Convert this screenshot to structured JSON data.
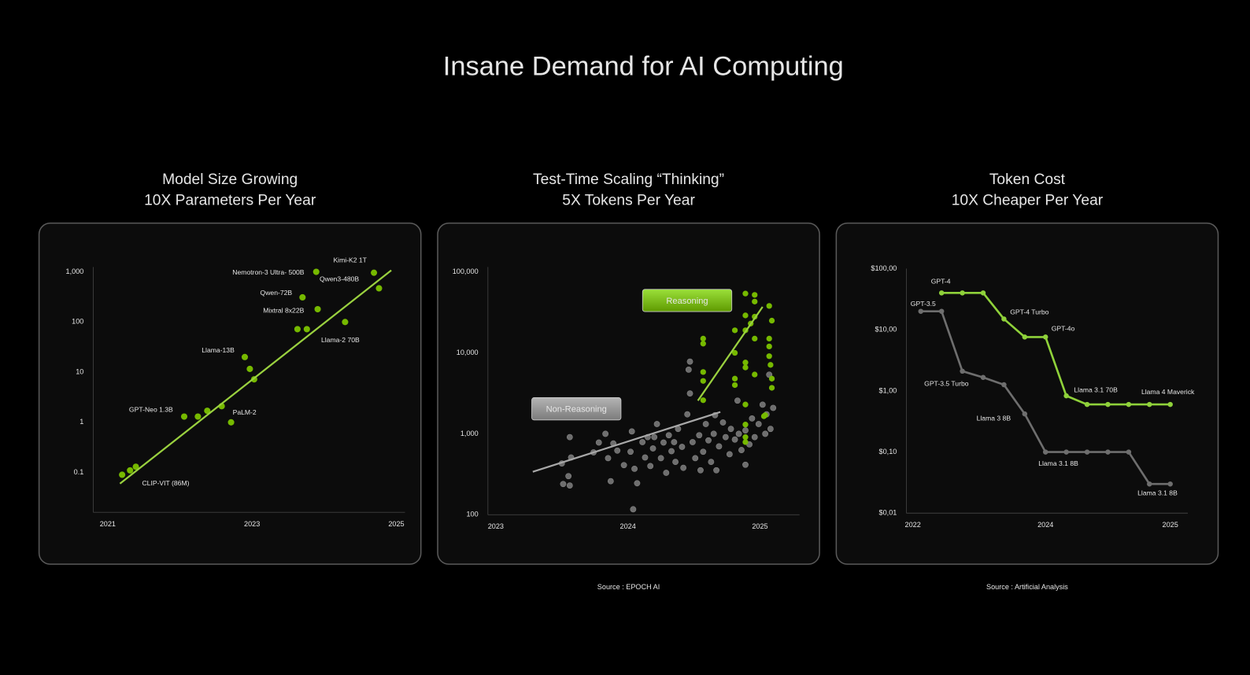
{
  "title": "Insane Demand for AI Computing",
  "chart_data": [
    {
      "type": "scatter",
      "title": "Model Size Growing",
      "subtitle": "10X Parameters Per Year",
      "log_y": true,
      "color": "#76b900",
      "xlim": [
        2020.8,
        2025.12
      ],
      "xticks": [
        2021,
        2023,
        2025
      ],
      "ylim": [
        0.016,
        1250
      ],
      "yticks": [
        {
          "value": 1000,
          "label": "1,000"
        },
        100,
        10,
        1,
        0.1
      ],
      "x": [
        2021.2,
        2021.31,
        2021.39,
        2022.06,
        2022.25,
        2022.38,
        2022.58,
        2022.71,
        2022.9,
        2022.97,
        2023.03,
        2023.63,
        2023.76,
        2023.7,
        2023.91,
        2023.89,
        2024.29,
        2024.69,
        2024.76
      ],
      "values": [
        0.09,
        0.11,
        0.13,
        1.3,
        1.3,
        1.7,
        2.1,
        1.0,
        20,
        11.6,
        7.2,
        72,
        72,
        310,
        180,
        1000,
        100,
        960,
        470
      ],
      "point_labels": [
        "CLIP-VIT (86M)",
        null,
        null,
        "GPT-Neo 1.3B",
        null,
        null,
        null,
        "PaLM-2",
        "Llama-13B",
        null,
        null,
        null,
        null,
        "Qwen-72B",
        "Mixtral 8x22B",
        "Nemotron-3 Ultra- 500B",
        "Llama-2 70B",
        "Kimi-K2 1T",
        "Qwen3-480B"
      ],
      "trend": {
        "color": "#9ad13f",
        "x": [
          2021.17,
          2024.93
        ],
        "values": [
          0.06,
          1070
        ]
      }
    },
    {
      "type": "scatter",
      "title": "Test-Time Scaling “Thinking”",
      "subtitle": "5X Tokens Per Year",
      "source": "Source : EPOCH AI",
      "log_y": true,
      "xlim": [
        2022.94,
        2025.3
      ],
      "xticks": [
        2023,
        2024,
        2025
      ],
      "ylim": [
        100,
        115000
      ],
      "yticks": [
        {
          "value": 100000,
          "label": "100,000"
        },
        {
          "value": 10000,
          "label": "10,000"
        },
        {
          "value": 1000,
          "label": "1,000"
        },
        100
      ],
      "series": [
        {
          "name": "Non-Reasoning",
          "color": "#6e6e6e",
          "x": [
            2023.5,
            2023.56,
            2023.57,
            2023.51,
            2023.55,
            2023.56,
            2023.74,
            2023.78,
            2023.83,
            2023.85,
            2023.87,
            2023.89,
            2023.92,
            2023.97,
            2024.02,
            2024.03,
            2024.04,
            2024.05,
            2024.07,
            2024.11,
            2024.13,
            2024.15,
            2024.17,
            2024.19,
            2024.22,
            2024.25,
            2024.27,
            2024.29,
            2024.31,
            2024.33,
            2024.36,
            2024.38,
            2024.41,
            2024.42,
            2024.45,
            2024.46,
            2024.47,
            2024.47,
            2024.49,
            2024.51,
            2024.54,
            2024.57,
            2024.59,
            2024.61,
            2024.63,
            2024.65,
            2024.67,
            2024.69,
            2024.72,
            2024.74,
            2024.77,
            2024.78,
            2024.81,
            2024.83,
            2024.84,
            2024.86,
            2024.89,
            2024.92,
            2024.94,
            2024.96,
            2024.99,
            2025.02,
            2025.04,
            2025.05,
            2025.07,
            2025.08,
            2025.1,
            2024.89,
            2024.66,
            2024.55,
            2024.35,
            2024.2
          ],
          "values": [
            430,
            910,
            510,
            240,
            300,
            230,
            590,
            780,
            1000,
            500,
            260,
            760,
            620,
            410,
            600,
            1070,
            117,
            370,
            245,
            790,
            510,
            910,
            400,
            660,
            1320,
            500,
            780,
            330,
            960,
            610,
            450,
            1150,
            690,
            380,
            1740,
            6200,
            7800,
            3150,
            790,
            500,
            960,
            600,
            1320,
            830,
            450,
            1000,
            355,
            700,
            1380,
            910,
            560,
            1150,
            850,
            2570,
            1000,
            630,
            1100,
            740,
            1550,
            910,
            1320,
            2290,
            1000,
            1740,
            5370,
            1150,
            2090,
            415,
            1700,
            355,
            790,
            910
          ],
          "trend": {
            "color": "#a8a8a8",
            "x": [
              2023.28,
              2024.7
            ],
            "values": [
              340,
              1860
            ]
          }
        },
        {
          "name": "Reasoning",
          "color": "#76b900",
          "x": [
            2024.96,
            2024.96,
            2024.89,
            2025.07,
            2024.89,
            2024.93,
            2024.96,
            2025.09,
            2024.81,
            2024.89,
            2024.57,
            2024.57,
            2024.96,
            2025.07,
            2025.07,
            2025.07,
            2024.81,
            2024.89,
            2024.89,
            2025.08,
            2024.57,
            2024.81,
            2024.96,
            2024.57,
            2024.81,
            2025.09,
            2025.09,
            2024.57,
            2024.89,
            2025.04,
            2025.03,
            2024.89,
            2024.89,
            2024.89
          ],
          "values": [
            52000,
            43000,
            54000,
            38000,
            29000,
            23000,
            28000,
            25000,
            19000,
            19000,
            15000,
            13000,
            15000,
            15000,
            12000,
            9100,
            10000,
            7600,
            6600,
            7100,
            5800,
            4800,
            5400,
            4500,
            4000,
            4800,
            3700,
            2600,
            2300,
            1700,
            1650,
            910,
            790,
            1300
          ],
          "trend": {
            "color": "#9ad13f",
            "x": [
              2024.53,
              2025.02
            ],
            "values": [
              2570,
              37000
            ]
          }
        }
      ]
    },
    {
      "type": "line",
      "title": "Token Cost",
      "subtitle": "10X Cheaper Per Year",
      "source": "Source : Artificial Analysis",
      "log_y": true,
      "categories": [
        "2022",
        null,
        null,
        null,
        null,
        null,
        "2024",
        null,
        null,
        null,
        null,
        null,
        "2025"
      ],
      "ylim": [
        0.01,
        100
      ],
      "yticks": [
        {
          "value": 100,
          "label": "$100,00"
        },
        {
          "value": 10,
          "label": "$10,00"
        },
        {
          "value": 1,
          "label": "$1,00"
        },
        {
          "value": 0.1,
          "label": "$0,10"
        },
        {
          "value": 0.01,
          "label": "$0,01"
        }
      ],
      "series": [
        {
          "color": "#6e6e6e",
          "values": [
            20,
            20,
            2.1,
            1.66,
            1.26,
            0.42,
            0.1,
            0.1,
            0.1,
            0.1,
            0.1,
            0.03,
            0.03
          ],
          "point_labels": [
            "GPT-3.5",
            null,
            "GPT-3.5 Turbo",
            null,
            null,
            "Llama 3 8B",
            null,
            "Llama 3.1 8B",
            null,
            null,
            null,
            null,
            "Llama 3.1 8B"
          ]
        },
        {
          "color": "#8fd13a",
          "values": [
            null,
            40,
            40,
            40,
            15,
            7.6,
            7.6,
            0.83,
            0.6,
            0.6,
            0.6,
            0.6,
            0.6
          ],
          "point_labels": [
            null,
            "GPT-4",
            null,
            null,
            "GPT-4 Turbo",
            null,
            "GPT-4o",
            "Llama 3.1 70B",
            null,
            null,
            null,
            null,
            "Llama 4 Maverick"
          ]
        }
      ]
    }
  ]
}
